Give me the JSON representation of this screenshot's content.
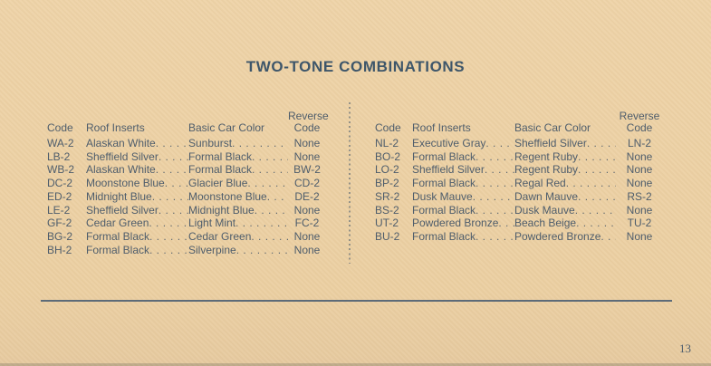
{
  "page": {
    "title": "TWO-TONE COMBINATIONS",
    "page_number": "13"
  },
  "colors": {
    "paper": "#ecd1a5",
    "ink": "#4e5d6c",
    "title_ink": "#3e566a",
    "rule": "#5d6b78"
  },
  "columns": {
    "code": "Code",
    "roof": "Roof Inserts",
    "basic": "Basic Car Color",
    "reverse_line1": "Reverse",
    "reverse_line2": "Code"
  },
  "tables": {
    "left": {
      "rows": [
        {
          "code": "WA-2",
          "roof": "Alaskan White",
          "basic": "Sunburst",
          "reverse": "None"
        },
        {
          "code": "LB-2",
          "roof": "Sheffield Silver",
          "basic": "Formal Black",
          "reverse": "None"
        },
        {
          "code": "WB-2",
          "roof": "Alaskan White",
          "basic": "Formal Black",
          "reverse": "BW-2"
        },
        {
          "code": "DC-2",
          "roof": "Moonstone Blue",
          "basic": "Glacier Blue",
          "reverse": "CD-2"
        },
        {
          "code": "ED-2",
          "roof": "Midnight Blue",
          "basic": "Moonstone Blue",
          "reverse": "DE-2"
        },
        {
          "code": "LE-2",
          "roof": "Sheffield Silver",
          "basic": "Midnight Blue",
          "reverse": "None"
        },
        {
          "code": "GF-2",
          "roof": "Cedar Green",
          "basic": "Light Mint",
          "reverse": "FC-2"
        },
        {
          "code": "BG-2",
          "roof": "Formal Black",
          "basic": "Cedar Green",
          "reverse": "None"
        },
        {
          "code": "BH-2",
          "roof": "Formal Black",
          "basic": "Silverpine",
          "reverse": "None"
        }
      ]
    },
    "right": {
      "rows": [
        {
          "code": "NL-2",
          "roof": "Executive Gray",
          "basic": "Sheffield Silver",
          "reverse": "LN-2"
        },
        {
          "code": "BO-2",
          "roof": "Formal Black",
          "basic": "Regent Ruby",
          "reverse": "None"
        },
        {
          "code": "LO-2",
          "roof": "Sheffield Silver",
          "basic": "Regent Ruby",
          "reverse": "None"
        },
        {
          "code": "BP-2",
          "roof": "Formal Black",
          "basic": "Regal Red",
          "reverse": "None"
        },
        {
          "code": "SR-2",
          "roof": "Dusk Mauve",
          "basic": "Dawn Mauve",
          "reverse": "RS-2"
        },
        {
          "code": "BS-2",
          "roof": "Formal Black",
          "basic": "Dusk Mauve",
          "reverse": "None"
        },
        {
          "code": "UT-2",
          "roof": "Powdered Bronze",
          "basic": "Beach Beige",
          "reverse": "TU-2"
        },
        {
          "code": "BU-2",
          "roof": "Formal Black",
          "basic": "Powdered Bronze",
          "reverse": "None"
        }
      ]
    }
  }
}
